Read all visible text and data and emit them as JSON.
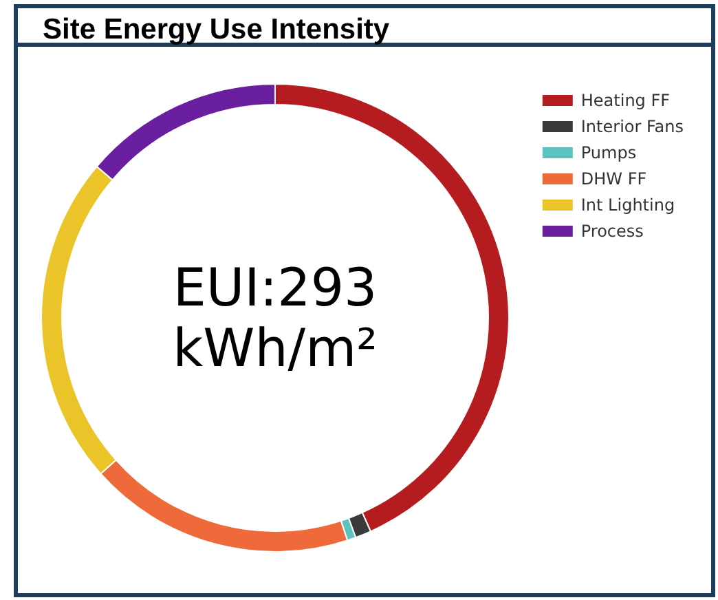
{
  "chart_data": {
    "type": "donut",
    "title": "Site Energy Use Intensity",
    "categories": [
      "Heating FF",
      "Interior Fans",
      "Pumps",
      "DHW FF",
      "Int Lighting",
      "Process"
    ],
    "values": [
      43.3,
      1.1,
      0.6,
      18.4,
      22.8,
      13.8
    ],
    "colors": [
      "#b51c1f",
      "#3a3a3a",
      "#5cc3bf",
      "#ee6a3a",
      "#ebc42a",
      "#6a1ea0"
    ],
    "legend": "top right",
    "annotations": [
      "EUI:293",
      "kWh/m²"
    ]
  }
}
